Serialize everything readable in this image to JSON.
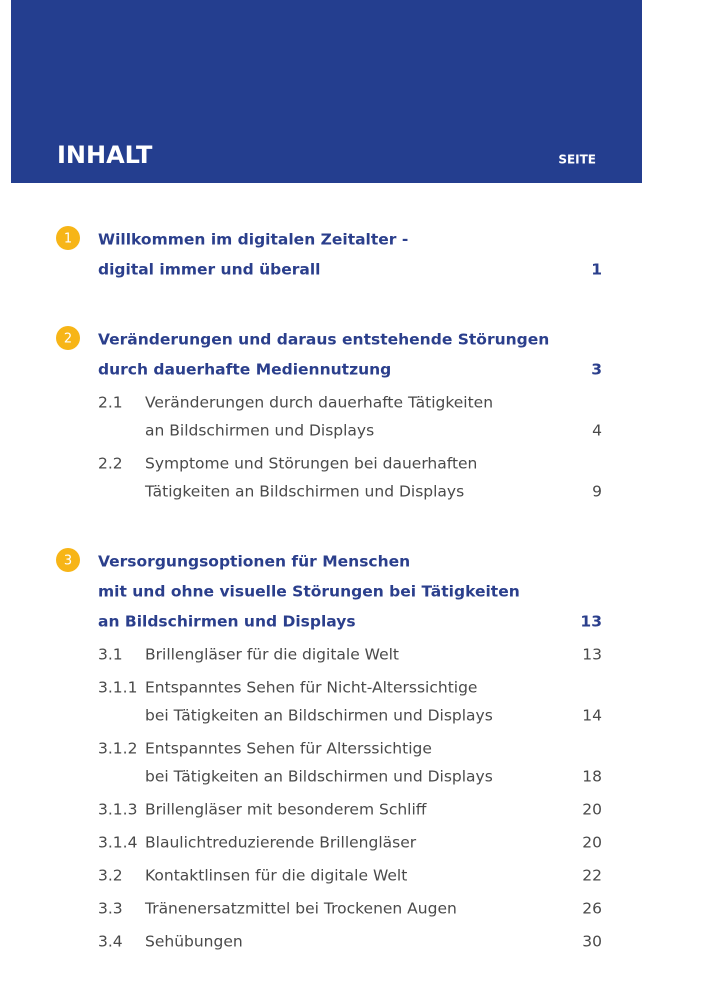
{
  "header": {
    "title": "INHALT",
    "page_label": "SEITE"
  },
  "sections": [
    {
      "number": 1,
      "lines": [
        "Willkommen im digitalen Zeitalter -",
        "digital immer und überall"
      ],
      "page": 1,
      "items": []
    },
    {
      "number": 2,
      "lines": [
        "Veränderungen und daraus entstehende Störungen",
        "durch dauerhafte Mediennutzung"
      ],
      "page": 3,
      "items": [
        {
          "number": "2.1",
          "lines": [
            "Veränderungen durch dauerhafte Tätigkeiten",
            "an Bildschirmen und Displays"
          ],
          "page": 4
        },
        {
          "number": "2.2",
          "lines": [
            "Symptome und Störungen bei dauerhaften",
            "Tätigkeiten an Bildschirmen und Displays"
          ],
          "page": 9
        }
      ]
    },
    {
      "number": 3,
      "lines": [
        "Versorgungsoptionen für Menschen",
        "mit und ohne visuelle Störungen bei Tätigkeiten",
        "an Bildschirmen und Displays"
      ],
      "page": 13,
      "items": [
        {
          "number": "3.1",
          "lines": [
            "Brillengläser für die digitale Welt"
          ],
          "page": 13
        },
        {
          "number": "3.1.1",
          "lines": [
            "Entspanntes Sehen für Nicht-Alterssichtige",
            "bei Tätigkeiten an Bildschirmen und Displays"
          ],
          "page": 14
        },
        {
          "number": "3.1.2",
          "lines": [
            "Entspanntes Sehen für Alterssichtige",
            "bei Tätigkeiten an Bildschirmen und Displays"
          ],
          "page": 18
        },
        {
          "number": "3.1.3",
          "lines": [
            "Brillengläser mit besonderem Schliff"
          ],
          "page": 20
        },
        {
          "number": "3.1.4",
          "lines": [
            "Blaulichtreduzierende Brillengläser"
          ],
          "page": 20
        },
        {
          "number": "3.2",
          "lines": [
            "Kontaktlinsen für die digitale Welt"
          ],
          "page": 22
        },
        {
          "number": "3.3",
          "lines": [
            "Tränenersatzmittel bei Trockenen Augen"
          ],
          "page": 26
        },
        {
          "number": "3.4",
          "lines": [
            "Sehübungen"
          ],
          "page": 30
        }
      ]
    }
  ]
}
